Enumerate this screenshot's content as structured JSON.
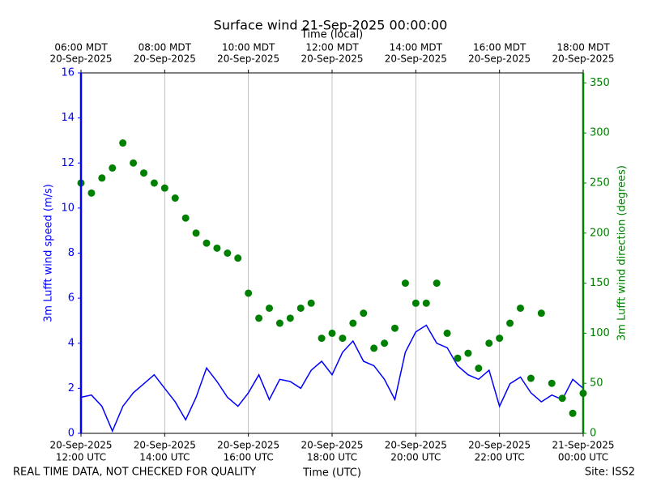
{
  "chart_data": {
    "type": "line",
    "title": "Surface wind 21-Sep-2025 00:00:00",
    "xlabel": "Time (UTC)",
    "x2label": "Time (local)",
    "ylabel": "3m Lufft wind speed (m/s)",
    "y2label": "3m Lufft wind direction (degrees)",
    "footer_left": "REAL TIME DATA, NOT CHECKED FOR QUALITY",
    "footer_right": "Site: ISS2",
    "grid": true,
    "xlim": [
      "2025-09-20 12:00",
      "2025-09-21 00:00"
    ],
    "xticks": [
      {
        "value": "2025-09-20 12:00",
        "label": [
          "20-Sep-2025",
          "12:00 UTC"
        ]
      },
      {
        "value": "2025-09-20 14:00",
        "label": [
          "20-Sep-2025",
          "14:00 UTC"
        ]
      },
      {
        "value": "2025-09-20 16:00",
        "label": [
          "20-Sep-2025",
          "16:00 UTC"
        ]
      },
      {
        "value": "2025-09-20 18:00",
        "label": [
          "20-Sep-2025",
          "18:00 UTC"
        ]
      },
      {
        "value": "2025-09-20 20:00",
        "label": [
          "20-Sep-2025",
          "20:00 UTC"
        ]
      },
      {
        "value": "2025-09-20 22:00",
        "label": [
          "20-Sep-2025",
          "22:00 UTC"
        ]
      },
      {
        "value": "2025-09-21 00:00",
        "label": [
          "21-Sep-2025",
          "00:00 UTC"
        ]
      }
    ],
    "x2lim": [
      "2025-09-20 06:00",
      "2025-09-20 18:00"
    ],
    "x2ticks": [
      {
        "value": "2025-09-20 06:00",
        "label": [
          "06:00 MDT",
          "20-Sep-2025"
        ]
      },
      {
        "value": "2025-09-20 08:00",
        "label": [
          "08:00 MDT",
          "20-Sep-2025"
        ]
      },
      {
        "value": "2025-09-20 10:00",
        "label": [
          "10:00 MDT",
          "20-Sep-2025"
        ]
      },
      {
        "value": "2025-09-20 12:00",
        "label": [
          "12:00 MDT",
          "20-Sep-2025"
        ]
      },
      {
        "value": "2025-09-20 14:00",
        "label": [
          "14:00 MDT",
          "20-Sep-2025"
        ]
      },
      {
        "value": "2025-09-20 16:00",
        "label": [
          "16:00 MDT",
          "20-Sep-2025"
        ]
      },
      {
        "value": "2025-09-20 18:00",
        "label": [
          "18:00 MDT",
          "20-Sep-2025"
        ]
      }
    ],
    "ylim": [
      0,
      16
    ],
    "yticks": [
      0,
      2,
      4,
      6,
      8,
      10,
      12,
      14,
      16
    ],
    "y2lim": [
      0,
      360
    ],
    "y2ticks": [
      0,
      50,
      100,
      150,
      200,
      250,
      300,
      350
    ],
    "ycolor": "#0000ff",
    "y2color": "#008000",
    "x": [
      "2025-09-20 12:00",
      "2025-09-20 12:15",
      "2025-09-20 12:30",
      "2025-09-20 12:45",
      "2025-09-20 13:00",
      "2025-09-20 13:15",
      "2025-09-20 13:30",
      "2025-09-20 13:45",
      "2025-09-20 14:00",
      "2025-09-20 14:15",
      "2025-09-20 14:30",
      "2025-09-20 14:45",
      "2025-09-20 15:00",
      "2025-09-20 15:15",
      "2025-09-20 15:30",
      "2025-09-20 15:45",
      "2025-09-20 16:00",
      "2025-09-20 16:15",
      "2025-09-20 16:30",
      "2025-09-20 16:45",
      "2025-09-20 17:00",
      "2025-09-20 17:15",
      "2025-09-20 17:30",
      "2025-09-20 17:45",
      "2025-09-20 18:00",
      "2025-09-20 18:15",
      "2025-09-20 18:30",
      "2025-09-20 18:45",
      "2025-09-20 19:00",
      "2025-09-20 19:15",
      "2025-09-20 19:30",
      "2025-09-20 19:45",
      "2025-09-20 20:00",
      "2025-09-20 20:15",
      "2025-09-20 20:30",
      "2025-09-20 20:45",
      "2025-09-20 21:00",
      "2025-09-20 21:15",
      "2025-09-20 21:30",
      "2025-09-20 21:45",
      "2025-09-20 22:00",
      "2025-09-20 22:15",
      "2025-09-20 22:30",
      "2025-09-20 22:45",
      "2025-09-20 23:00",
      "2025-09-20 23:15",
      "2025-09-20 23:30",
      "2025-09-20 23:45",
      "2025-09-21 00:00"
    ],
    "series": [
      {
        "name": "3m Lufft wind speed",
        "kind": "line",
        "axis": "y",
        "color": "#0000ff",
        "values": [
          1.6,
          1.7,
          1.2,
          0.1,
          1.2,
          1.8,
          2.2,
          2.6,
          2.0,
          1.4,
          0.6,
          1.6,
          2.9,
          2.3,
          1.6,
          1.2,
          1.8,
          2.6,
          1.5,
          2.4,
          2.3,
          2.0,
          2.8,
          3.2,
          2.6,
          3.6,
          4.1,
          3.2,
          3.0,
          2.4,
          1.5,
          3.6,
          4.5,
          4.8,
          4.0,
          3.8,
          3.0,
          2.6,
          2.4,
          2.8,
          1.2,
          2.2,
          2.5,
          1.8,
          1.4,
          1.7,
          1.5,
          2.4,
          2.0
        ]
      },
      {
        "name": "3m Lufft wind direction",
        "kind": "scatter",
        "axis": "y2",
        "color": "#008000",
        "values": [
          250,
          240,
          255,
          265,
          290,
          270,
          260,
          250,
          245,
          235,
          215,
          200,
          190,
          185,
          180,
          175,
          140,
          115,
          125,
          110,
          115,
          125,
          130,
          95,
          100,
          95,
          110,
          120,
          85,
          90,
          105,
          150,
          130,
          130,
          150,
          100,
          75,
          80,
          65,
          90,
          95,
          110,
          125,
          55,
          120,
          50,
          35,
          20,
          40
        ]
      }
    ]
  }
}
